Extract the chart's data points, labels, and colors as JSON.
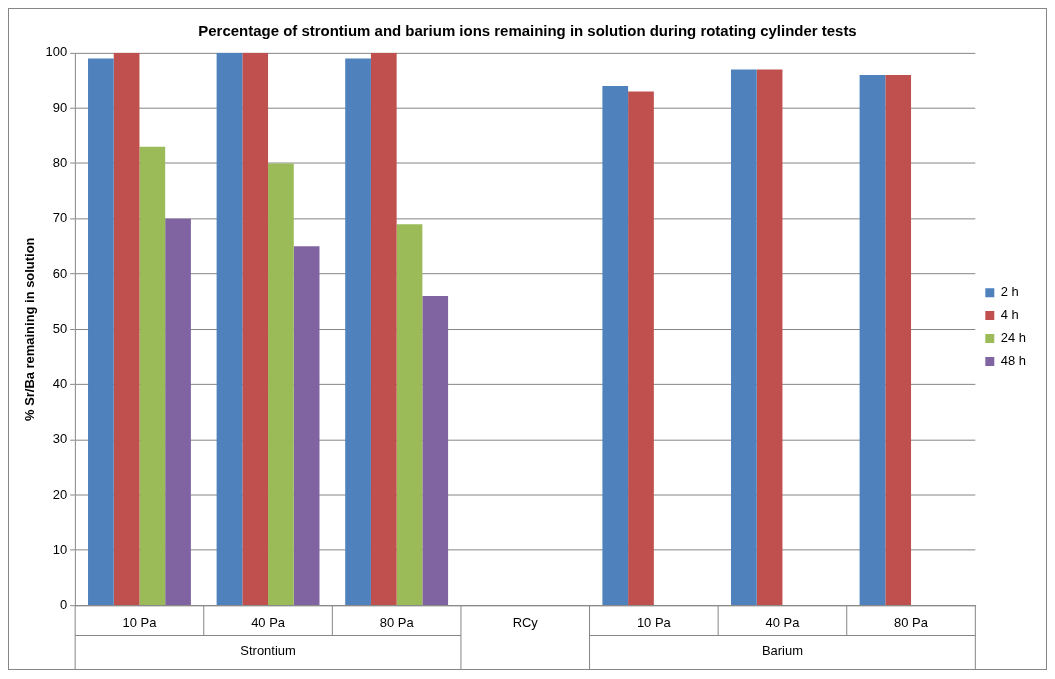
{
  "chart_data": {
    "type": "bar",
    "title": "Percentage of strontium and barium ions remaining in solution during rotating cylinder tests",
    "ylabel": "% Sr/Ba remaining in solution",
    "categories": [
      "10 Pa",
      "40 Pa",
      "80 Pa",
      "RCy",
      "10 Pa",
      "40 Pa",
      "80 Pa"
    ],
    "series": [
      {
        "name": "2 h",
        "color": "#4f81bd",
        "values": [
          99,
          100,
          99,
          null,
          94,
          97,
          96
        ]
      },
      {
        "name": "4 h",
        "color": "#c0504d",
        "values": [
          100,
          100,
          100,
          null,
          93,
          97,
          96
        ]
      },
      {
        "name": "24 h",
        "color": "#9bbb59",
        "values": [
          83,
          80,
          69,
          null,
          null,
          null,
          null
        ]
      },
      {
        "name": "48 h",
        "color": "#8064a2",
        "values": [
          70,
          65,
          56,
          null,
          null,
          null,
          null
        ]
      }
    ],
    "annotations": [
      "Strontium",
      "Barium"
    ],
    "ylim": [
      0,
      100
    ],
    "yticks": [
      0,
      10,
      20,
      30,
      40,
      50,
      60,
      70,
      80,
      90,
      100
    ],
    "grid": "y",
    "legend": "right"
  }
}
